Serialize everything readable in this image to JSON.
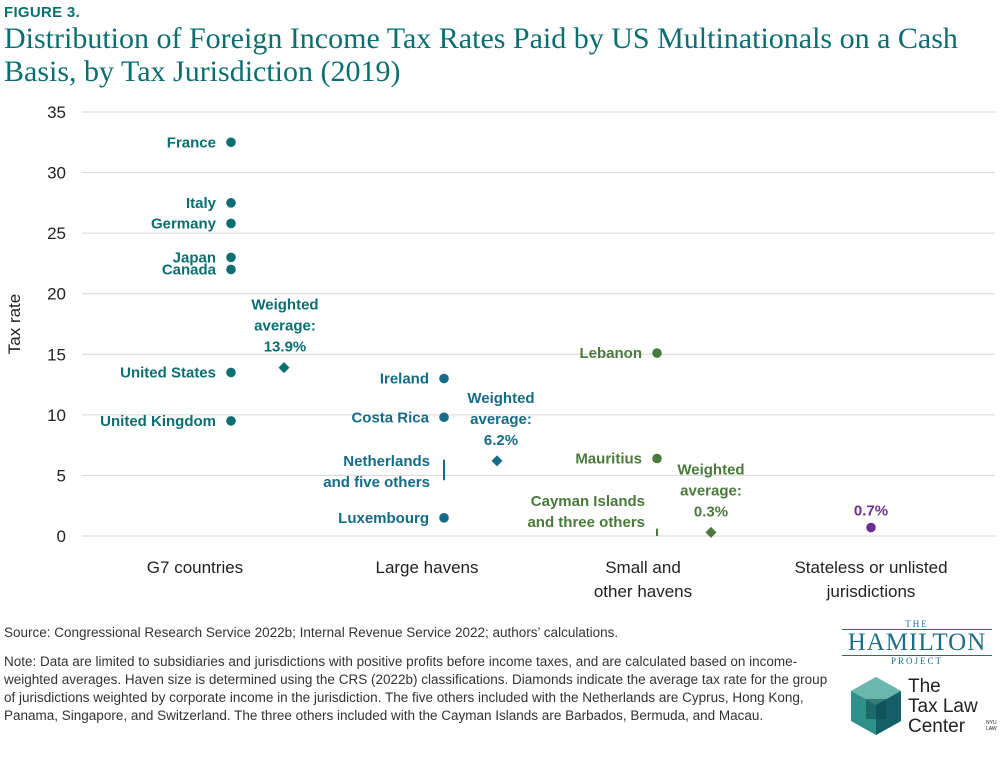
{
  "figure_label": "FIGURE 3.",
  "title": "Distribution of Foreign Income Tax Rates Paid by US Multinationals on a Cash Basis, by Tax Jurisdiction (2019)",
  "source": "Source: Congressional Research Service 2022b; Internal Revenue Service 2022; authors’ calculations.",
  "note": "Note: Data are limited to subsidiaries and jurisdictions with positive profits before income taxes, and are calculated based on income-weighted averages. Haven size is determined using the CRS (2022b) classifications. Diamonds indicate the average tax rate for the group of jurisdictions weighted by corporate income in the jurisdiction. The five others included with the Netherlands are Cyprus, Hong Kong, Panama, Singapore, and Switzerland. The three others included with the Cayman Islands are Barbados, Bermuda, and Macau.",
  "logos": {
    "hamilton_the": "THE",
    "hamilton_name": "HAMILTON",
    "hamilton_project": "PROJECT",
    "tlc_line1": "The",
    "tlc_line2": "Tax Law",
    "tlc_line3": "Center",
    "tlc_nyu1": "NYU",
    "tlc_nyu2": "LAW"
  },
  "chart_data": {
    "type": "scatter",
    "ylabel": "Tax rate",
    "ylim": [
      0,
      35
    ],
    "yticks": [
      0,
      5,
      10,
      15,
      20,
      25,
      30,
      35
    ],
    "grid": true,
    "colors": {
      "g7": "#0b6e70",
      "large": "#156c86",
      "small": "#4a7a3a",
      "stateless": "#6a2f8f"
    },
    "categories": [
      {
        "id": "g7",
        "label_lines": [
          "G7 countries"
        ]
      },
      {
        "id": "large",
        "label_lines": [
          "Large havens"
        ]
      },
      {
        "id": "small",
        "label_lines": [
          "Small and",
          "other havens"
        ]
      },
      {
        "id": "stateless",
        "label_lines": [
          "Stateless or unlisted",
          "jurisdictions"
        ]
      }
    ],
    "points": [
      {
        "category": "g7",
        "label": "France",
        "y": 32.5
      },
      {
        "category": "g7",
        "label": "Italy",
        "y": 27.5
      },
      {
        "category": "g7",
        "label": "Germany",
        "y": 25.8
      },
      {
        "category": "g7",
        "label": "Japan",
        "y": 23.0
      },
      {
        "category": "g7",
        "label": "Canada",
        "y": 22.0
      },
      {
        "category": "g7",
        "label": "United States",
        "y": 13.5
      },
      {
        "category": "g7",
        "label": "United Kingdom",
        "y": 9.5
      },
      {
        "category": "large",
        "label": "Ireland",
        "y": 13.0
      },
      {
        "category": "large",
        "label": "Costa Rica",
        "y": 9.8
      },
      {
        "category": "large",
        "label": "Luxembourg",
        "y": 1.5
      },
      {
        "category": "small",
        "label": "Lebanon",
        "y": 15.1
      },
      {
        "category": "small",
        "label": "Mauritius",
        "y": 6.4
      },
      {
        "category": "stateless",
        "label": "0.7%",
        "y": 0.7
      }
    ],
    "ranges": [
      {
        "category": "large",
        "label_lines": [
          "Netherlands",
          "and five others"
        ],
        "y_min": 4.6,
        "y_max": 6.3
      },
      {
        "category": "small",
        "label_lines": [
          "Cayman Islands",
          "and three others"
        ],
        "y_min": 0.0,
        "y_max": 0.6
      }
    ],
    "averages": [
      {
        "category": "g7",
        "value": 13.9,
        "label_lines": [
          "Weighted",
          "average:",
          "13.9%"
        ]
      },
      {
        "category": "large",
        "value": 6.2,
        "label_lines": [
          "Weighted",
          "average:",
          "6.2%"
        ]
      },
      {
        "category": "small",
        "value": 0.3,
        "label_lines": [
          "Weighted",
          "average:",
          "0.3%"
        ]
      }
    ]
  }
}
